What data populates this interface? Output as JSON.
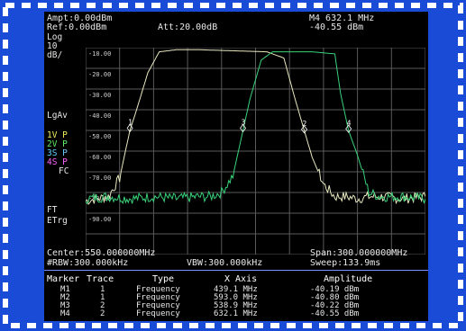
{
  "header": {
    "ampt": "Ampt:0.00dBm",
    "ref": "Ref:0.00dBm",
    "att": "Att:20.00dB",
    "marker_freq": "M4 632.1 MHz",
    "marker_amp": "-40.55 dBm"
  },
  "side_labels": {
    "scale_mode": "Log",
    "scale_value": "10",
    "scale_unit": "dB/",
    "lgav": "LgAv",
    "trace1": "1V P",
    "trace2": "2V P",
    "trace3": "3S P",
    "trace4": "4S P",
    "fc": "FC",
    "ft": "FT",
    "etrg": "ETrg"
  },
  "y_tick_labels": [
    "-10.00",
    "-20.00",
    "-30.00",
    "-40.00",
    "-50.00",
    "-60.00",
    "-70.00",
    "-80.00",
    "-90.00"
  ],
  "footer": {
    "center": "Center:550.000000MHz",
    "span": "Span:300.000000MHz",
    "rbw": "#RBW:300.000kHz",
    "vbw": "VBW:300.000kHz",
    "sweep": "Sweep:133.9ms"
  },
  "marker_table": {
    "headers": [
      "Marker",
      "Trace",
      "Type",
      "X Axis",
      "Amplitude"
    ],
    "rows": [
      {
        "marker": "M1",
        "trace": "1",
        "type": "Frequency",
        "x": "439.1 MHz",
        "amp": "-40.19 dBm"
      },
      {
        "marker": "M2",
        "trace": "1",
        "type": "Frequency",
        "x": "593.0 MHz",
        "amp": "-40.80 dBm"
      },
      {
        "marker": "M3",
        "trace": "2",
        "type": "Frequency",
        "x": "538.9 MHz",
        "amp": "-40.22 dBm"
      },
      {
        "marker": "M4",
        "trace": "2",
        "type": "Frequency",
        "x": "632.1 MHz",
        "amp": "-40.55 dBm"
      }
    ]
  },
  "chart_data": {
    "type": "line",
    "x_range_mhz": [
      400,
      700
    ],
    "y_range_dbm": [
      0,
      -100
    ],
    "grid": true,
    "series": [
      {
        "color": "#e8e8c0",
        "x": [
          400,
          410,
          420,
          430,
          439.1,
          445,
          455,
          465,
          480,
          500,
          560,
          575,
          585,
          593,
          600,
          610,
          620,
          630,
          640,
          650,
          660,
          680,
          700
        ],
        "y": [
          -74,
          -73,
          -72,
          -63,
          -40,
          -30,
          -12,
          -2,
          -1,
          -1,
          -2,
          -5,
          -25,
          -40,
          -53,
          -66,
          -72,
          -72,
          -73,
          -72,
          -72,
          -73,
          -72
        ]
      },
      {
        "color": "#39d37a",
        "x": [
          400,
          420,
          440,
          460,
          480,
          500,
          510,
          520,
          530,
          538.9,
          545,
          555,
          565,
          600,
          620,
          625,
          632.1,
          640,
          650,
          660,
          680,
          700
        ],
        "y": [
          -73,
          -72,
          -73,
          -72,
          -73,
          -72,
          -72,
          -70,
          -62,
          -40,
          -25,
          -6,
          -2,
          -2,
          -3,
          -22,
          -40,
          -52,
          -70,
          -72,
          -72,
          -73
        ]
      }
    ],
    "markers": [
      {
        "label": "1",
        "x": 439.1,
        "y": -40.19
      },
      {
        "label": "3",
        "x": 538.9,
        "y": -40.22
      },
      {
        "label": "2",
        "x": 593.0,
        "y": -40.8
      },
      {
        "label": "4",
        "x": 632.1,
        "y": -40.55
      }
    ]
  }
}
